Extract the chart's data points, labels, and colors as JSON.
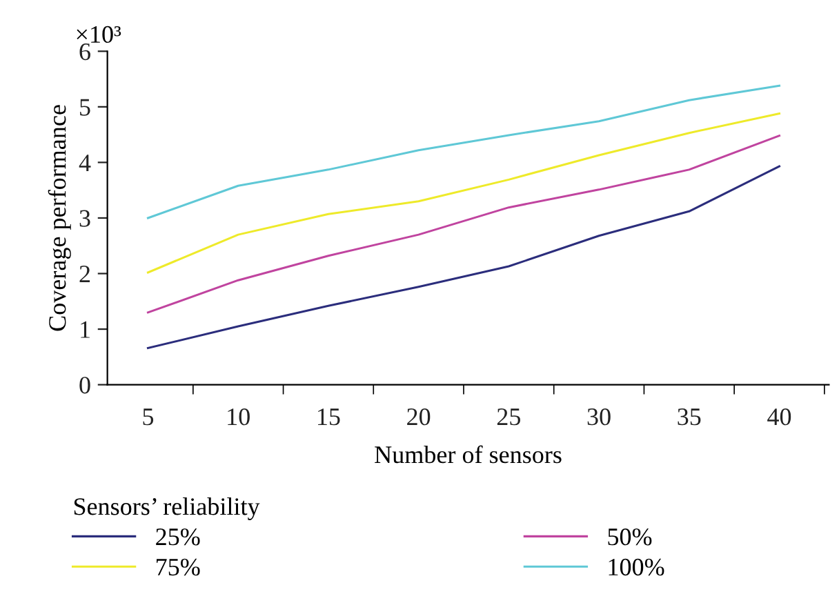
{
  "chart_data": {
    "type": "line",
    "xlabel": "Number of sensors",
    "ylabel": "Coverage performance",
    "legend_title": "Sensors’ reliability",
    "annotations": [
      "×10³"
    ],
    "categories": [
      "5",
      "10",
      "15",
      "20",
      "25",
      "30",
      "35",
      "40"
    ],
    "ylim": [
      0,
      6
    ],
    "yticks": [
      0,
      1,
      2,
      3,
      4,
      5,
      6
    ],
    "grid": false,
    "legend": "bottom",
    "marker": "none",
    "line_style": "solid",
    "series": [
      {
        "name": "25%",
        "color": "#2b2d7c",
        "values": [
          0.66,
          1.05,
          1.42,
          1.76,
          2.13,
          2.68,
          3.12,
          3.93
        ]
      },
      {
        "name": "50%",
        "color": "#c0449f",
        "values": [
          1.3,
          1.88,
          2.32,
          2.7,
          3.19,
          3.51,
          3.87,
          4.48
        ]
      },
      {
        "name": "75%",
        "color": "#eeea2a",
        "values": [
          2.02,
          2.7,
          3.07,
          3.3,
          3.69,
          4.13,
          4.53,
          4.88
        ]
      },
      {
        "name": "100%",
        "color": "#5fc8d6",
        "values": [
          3.0,
          3.58,
          3.87,
          4.22,
          4.49,
          4.74,
          5.12,
          5.38
        ]
      }
    ]
  }
}
